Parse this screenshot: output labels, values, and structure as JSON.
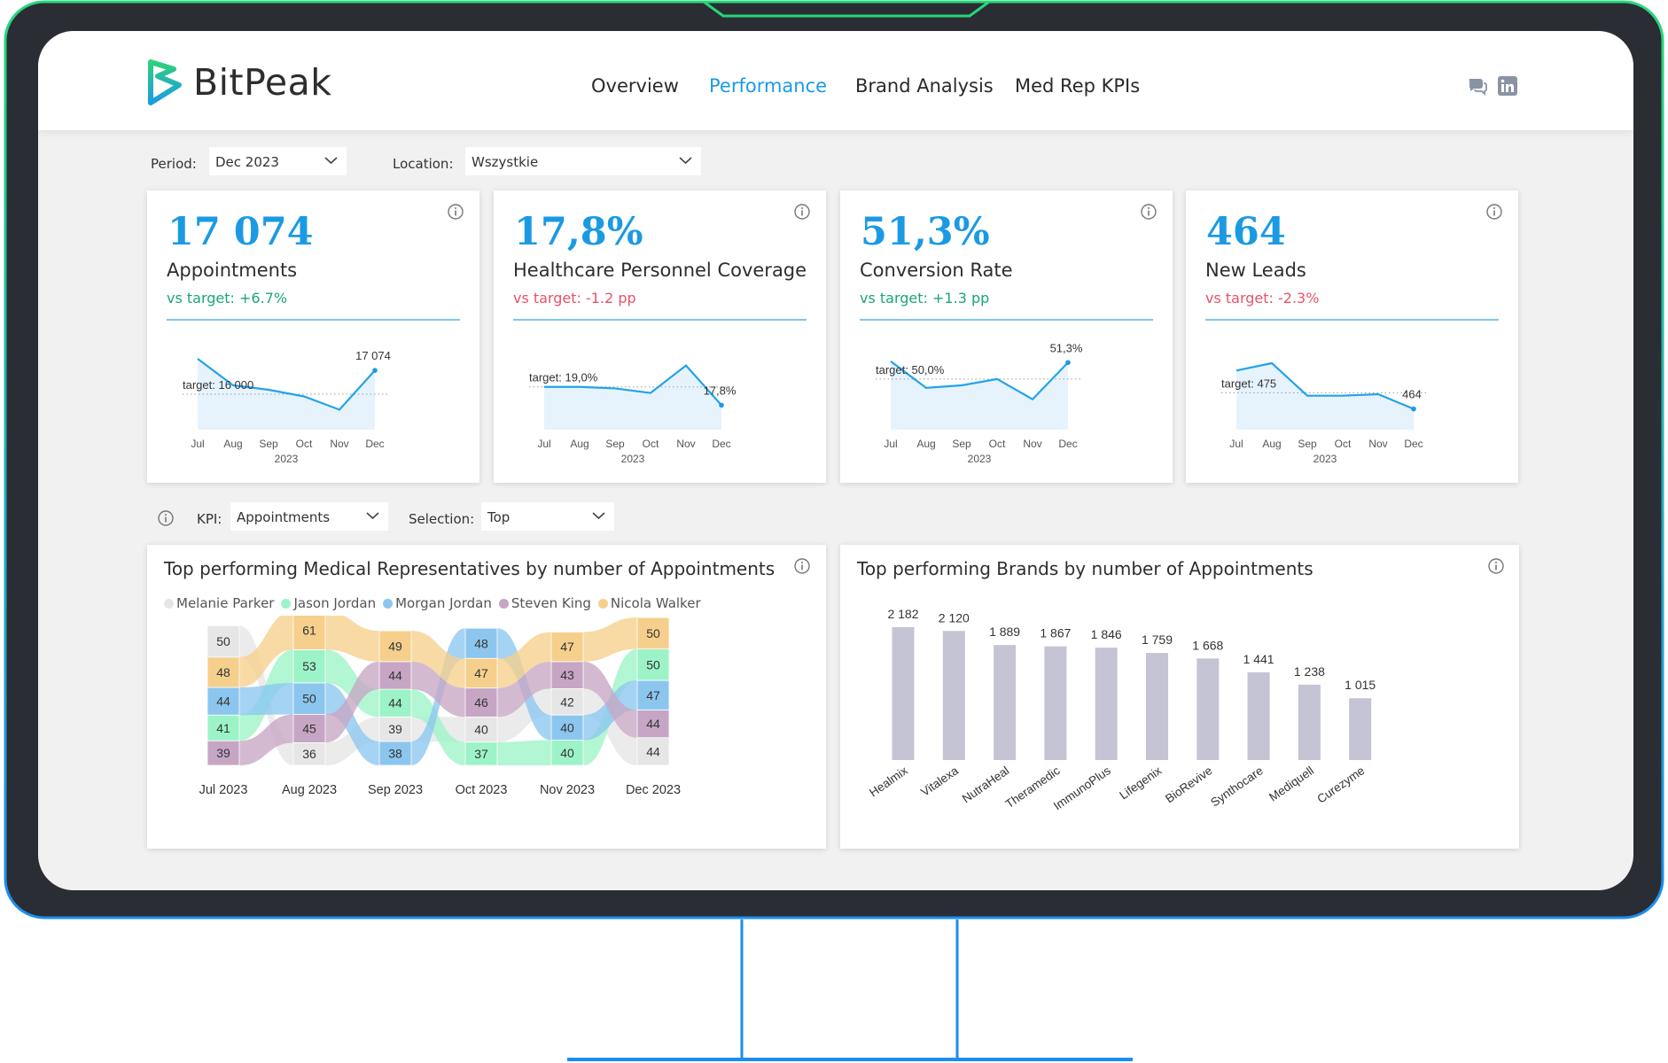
{
  "brand": {
    "logo_text": "BitPeak"
  },
  "nav": {
    "items": [
      {
        "label": "Overview"
      },
      {
        "label": "Performance"
      },
      {
        "label": "Brand Analysis"
      },
      {
        "label": "Med Rep KPIs"
      }
    ],
    "active": "Performance"
  },
  "header_icons": [
    "chat-icon",
    "linkedin-icon"
  ],
  "filters": {
    "period": {
      "label": "Period:",
      "value": "Dec 2023"
    },
    "location": {
      "label": "Location:",
      "value": "Wszystkie"
    },
    "kpi": {
      "label": "KPI:",
      "value": "Appointments"
    },
    "selection": {
      "label": "Selection:",
      "value": "Top"
    }
  },
  "colors": {
    "accent": "#1b9ae4",
    "positive": "#1aa577",
    "negative": "#e5536a",
    "frame_gradient_start": "#27d77a",
    "frame_gradient_end": "#1a8ef0",
    "bar": "#c4c4d4"
  },
  "kpis": [
    {
      "value": "17 074",
      "name": "Appointments",
      "delta": "vs target: +6.7%",
      "trend": "pos",
      "target_label": "target: 16 000",
      "end_label": "17 074",
      "chart_data": {
        "type": "line",
        "x": [
          "Jul",
          "Aug",
          "Sep",
          "Oct",
          "Nov",
          "Dec"
        ],
        "year": "2023",
        "values": [
          17600,
          16400,
          16200,
          15900,
          15300,
          17074
        ],
        "target": 16000,
        "ylim": [
          14400,
          18400
        ]
      }
    },
    {
      "value": "17,8%",
      "name": "Healthcare Personnel Coverage",
      "delta": "vs target: -1.2 pp",
      "trend": "neg",
      "target_label": "target: 19,0%",
      "end_label": "17,8%",
      "chart_data": {
        "type": "line",
        "x": [
          "Jul",
          "Aug",
          "Sep",
          "Oct",
          "Nov",
          "Dec"
        ],
        "year": "2023",
        "values": [
          19.0,
          19.0,
          18.9,
          18.6,
          20.4,
          17.8
        ],
        "target": 19.0,
        "ylim": [
          16.2,
          22.0
        ]
      }
    },
    {
      "value": "51,3%",
      "name": "Conversion Rate",
      "delta": "vs target: +1.3 pp",
      "trend": "pos",
      "target_label": "target: 50,0%",
      "end_label": "51,3%",
      "chart_data": {
        "type": "line",
        "x": [
          "Jul",
          "Aug",
          "Sep",
          "Oct",
          "Nov",
          "Dec"
        ],
        "year": "2023",
        "values": [
          51.4,
          49.3,
          49.5,
          50.0,
          48.4,
          51.3
        ],
        "target": 50.0,
        "ylim": [
          46.0,
          53.0
        ]
      }
    },
    {
      "value": "464",
      "name": "New Leads",
      "delta": "vs target: -2.3%",
      "trend": "neg",
      "target_label": "target: 475",
      "end_label": "464",
      "chart_data": {
        "type": "line",
        "x": [
          "Jul",
          "Aug",
          "Sep",
          "Oct",
          "Nov",
          "Dec"
        ],
        "year": "2023",
        "values": [
          490,
          495,
          473,
          473,
          474,
          464
        ],
        "target": 475,
        "ylim": [
          450,
          510
        ]
      }
    }
  ],
  "reps_chart": {
    "title": "Top performing Medical Representatives by number of Appointments",
    "chart_data": {
      "type": "area",
      "categories": [
        "Jul 2023",
        "Aug 2023",
        "Sep 2023",
        "Oct 2023",
        "Nov 2023",
        "Dec 2023"
      ],
      "series": [
        {
          "name": "Melanie Parker",
          "color": "#e6e6e6",
          "values": [
            50,
            36,
            39,
            40,
            42,
            44
          ]
        },
        {
          "name": "Jason Jordan",
          "color": "#9cf3c8",
          "values": [
            41,
            53,
            44,
            37,
            40,
            50
          ]
        },
        {
          "name": "Morgan Jordan",
          "color": "#8cc6ef",
          "values": [
            44,
            50,
            38,
            48,
            40,
            47
          ]
        },
        {
          "name": "Steven King",
          "color": "#c6a6c4",
          "values": [
            39,
            45,
            44,
            46,
            43,
            44
          ]
        },
        {
          "name": "Nicola Walker",
          "color": "#f6cf8c",
          "values": [
            48,
            61,
            49,
            47,
            47,
            50
          ]
        }
      ]
    }
  },
  "brands_chart": {
    "title": "Top performing Brands by number of Appointments",
    "chart_data": {
      "type": "bar",
      "categories": [
        "Healmix",
        "Vitalexa",
        "NutraHeal",
        "Theramedic",
        "ImmunoPlus",
        "Lifegenix",
        "BioRevive",
        "Synthocare",
        "Mediquell",
        "Curezyme"
      ],
      "values": [
        2182,
        2120,
        1889,
        1867,
        1846,
        1759,
        1668,
        1441,
        1238,
        1015
      ],
      "labels": [
        "2 182",
        "2 120",
        "1 889",
        "1 867",
        "1 846",
        "1 759",
        "1 668",
        "1 441",
        "1 238",
        "1 015"
      ]
    }
  }
}
